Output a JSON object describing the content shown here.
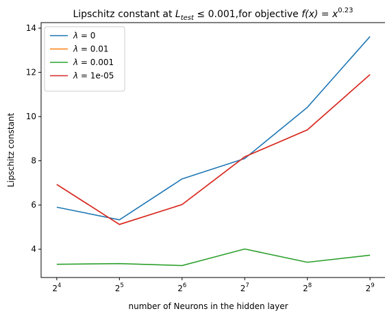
{
  "chart_data": {
    "type": "line",
    "title": "Lipschitz constant at L_test ≤ 0.001,for objective f(x) = x^0.23",
    "title_parts": {
      "prefix": "Lipschitz constant at ",
      "L": "L",
      "L_sub": "test",
      "middle": " ≤ 0.001,for objective ",
      "f_expr": "f(x) = x",
      "exponent": "0.23"
    },
    "xlabel": "number of Neurons in the hidden layer",
    "ylabel": "Lipschitz constant",
    "x": [
      16,
      32,
      64,
      128,
      256,
      512
    ],
    "x_scale": "log2",
    "x_ticks": [
      {
        "base": "2",
        "exp": "4"
      },
      {
        "base": "2",
        "exp": "5"
      },
      {
        "base": "2",
        "exp": "6"
      },
      {
        "base": "2",
        "exp": "7"
      },
      {
        "base": "2",
        "exp": "8"
      },
      {
        "base": "2",
        "exp": "9"
      }
    ],
    "ylim": [
      2.72,
      14.25
    ],
    "y_ticks": [
      4,
      6,
      8,
      10,
      12,
      14
    ],
    "grid": false,
    "legend_position": "top-left",
    "series": [
      {
        "name": "λ = 0",
        "lambda": "0",
        "color": "#1f77b4",
        "values": [
          5.9,
          5.33,
          7.18,
          8.1,
          10.42,
          13.62
        ]
      },
      {
        "name": "λ = 0.01",
        "lambda": "0.01",
        "color": "#ff7f0e",
        "values": [
          6.93,
          5.12,
          6.02,
          8.18,
          9.4,
          11.9
        ]
      },
      {
        "name": "λ = 0.001",
        "lambda": "0.001",
        "color": "#2ca02c",
        "values": [
          3.32,
          3.35,
          3.26,
          4.01,
          3.41,
          3.73
        ]
      },
      {
        "name": "λ = 1e-05",
        "lambda": "1e-05",
        "color": "#d62728",
        "values": [
          6.93,
          5.12,
          6.02,
          8.18,
          9.4,
          11.9
        ]
      }
    ]
  }
}
